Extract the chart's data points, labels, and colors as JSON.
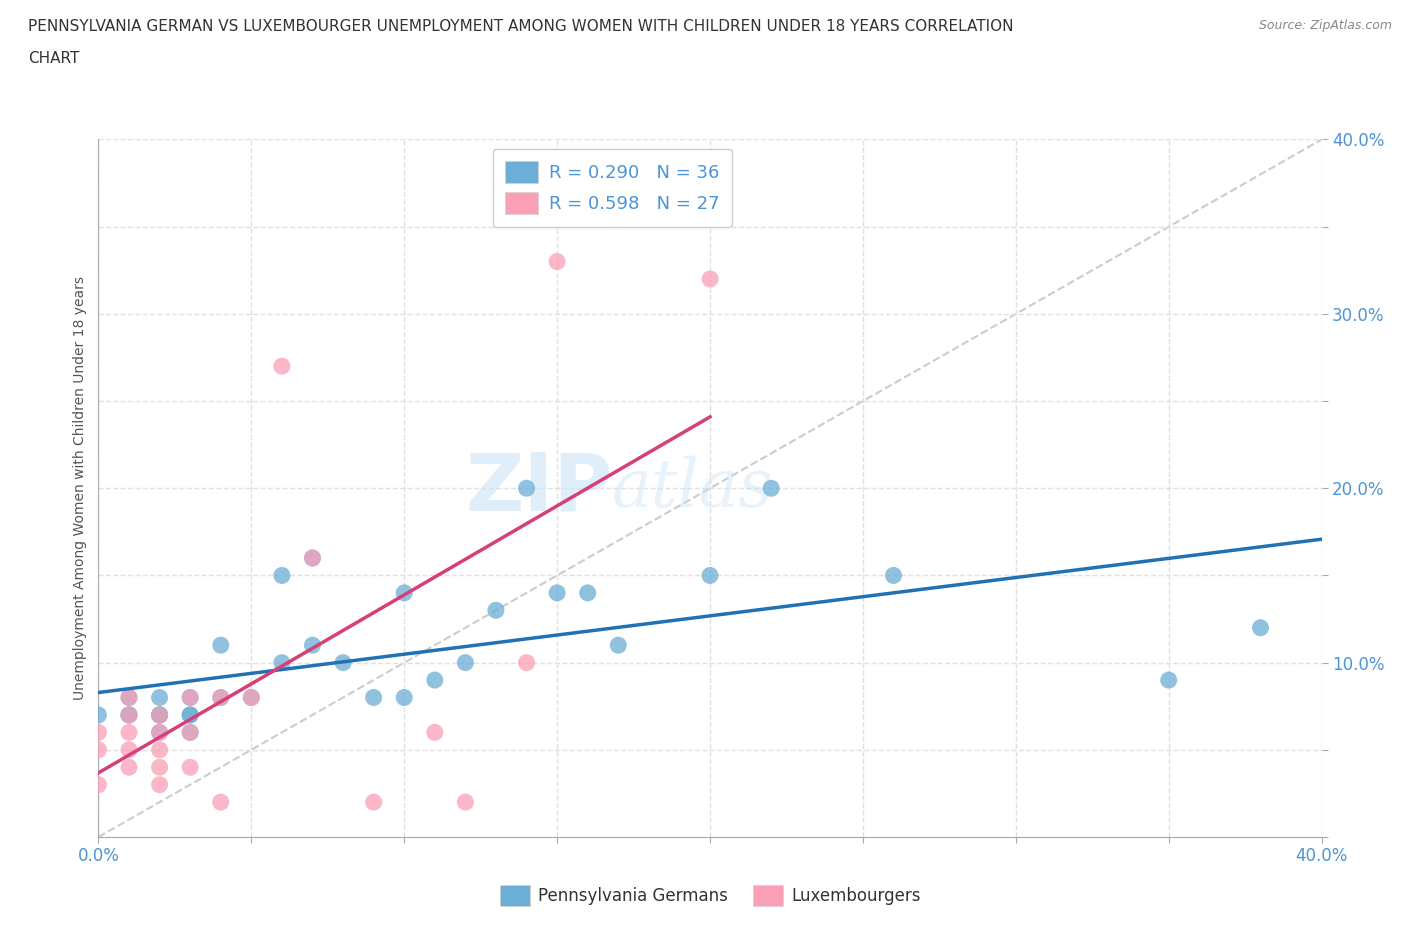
{
  "title_line1": "PENNSYLVANIA GERMAN VS LUXEMBOURGER UNEMPLOYMENT AMONG WOMEN WITH CHILDREN UNDER 18 YEARS CORRELATION",
  "title_line2": "CHART",
  "source": "Source: ZipAtlas.com",
  "ylabel": "Unemployment Among Women with Children Under 18 years",
  "xlim": [
    0.0,
    0.4
  ],
  "ylim": [
    0.0,
    0.4
  ],
  "xticks": [
    0.0,
    0.05,
    0.1,
    0.15,
    0.2,
    0.25,
    0.3,
    0.35,
    0.4
  ],
  "yticks": [
    0.0,
    0.05,
    0.1,
    0.15,
    0.2,
    0.25,
    0.3,
    0.35,
    0.4
  ],
  "xtick_labels": [
    "0.0%",
    "",
    "",
    "",
    "",
    "",
    "",
    "",
    "40.0%"
  ],
  "ytick_labels": [
    "",
    "",
    "10.0%",
    "",
    "20.0%",
    "",
    "30.0%",
    "",
    "40.0%"
  ],
  "bg_color": "#ffffff",
  "grid_color": "#e0e0e0",
  "watermark_zip": "ZIP",
  "watermark_atlas": "atlas",
  "blue_color": "#6baed6",
  "pink_color": "#fa9fb5",
  "blue_line_color": "#2171b5",
  "pink_line_color": "#d63f7a",
  "ref_line_color": "#cccccc",
  "legend_text_color": "#4d94d6",
  "tick_color": "#4d94d6",
  "pennsylvania_x": [
    0.0,
    0.01,
    0.01,
    0.01,
    0.02,
    0.02,
    0.02,
    0.02,
    0.02,
    0.03,
    0.03,
    0.03,
    0.03,
    0.04,
    0.04,
    0.05,
    0.06,
    0.06,
    0.07,
    0.07,
    0.08,
    0.09,
    0.1,
    0.1,
    0.11,
    0.12,
    0.13,
    0.14,
    0.15,
    0.16,
    0.17,
    0.2,
    0.22,
    0.26,
    0.35,
    0.38
  ],
  "pennsylvania_y": [
    0.07,
    0.07,
    0.08,
    0.07,
    0.07,
    0.07,
    0.08,
    0.07,
    0.06,
    0.07,
    0.08,
    0.07,
    0.06,
    0.08,
    0.11,
    0.08,
    0.1,
    0.15,
    0.16,
    0.11,
    0.1,
    0.08,
    0.08,
    0.14,
    0.09,
    0.1,
    0.13,
    0.2,
    0.14,
    0.14,
    0.11,
    0.15,
    0.2,
    0.15,
    0.09,
    0.12
  ],
  "luxembourger_x": [
    0.0,
    0.0,
    0.0,
    0.01,
    0.01,
    0.01,
    0.01,
    0.01,
    0.02,
    0.02,
    0.02,
    0.02,
    0.02,
    0.03,
    0.03,
    0.03,
    0.04,
    0.04,
    0.05,
    0.06,
    0.07,
    0.09,
    0.11,
    0.12,
    0.14,
    0.15,
    0.2
  ],
  "luxembourger_y": [
    0.06,
    0.05,
    0.03,
    0.08,
    0.07,
    0.06,
    0.05,
    0.04,
    0.07,
    0.06,
    0.05,
    0.04,
    0.03,
    0.08,
    0.06,
    0.04,
    0.08,
    0.02,
    0.08,
    0.27,
    0.16,
    0.02,
    0.06,
    0.02,
    0.1,
    0.33,
    0.32
  ]
}
